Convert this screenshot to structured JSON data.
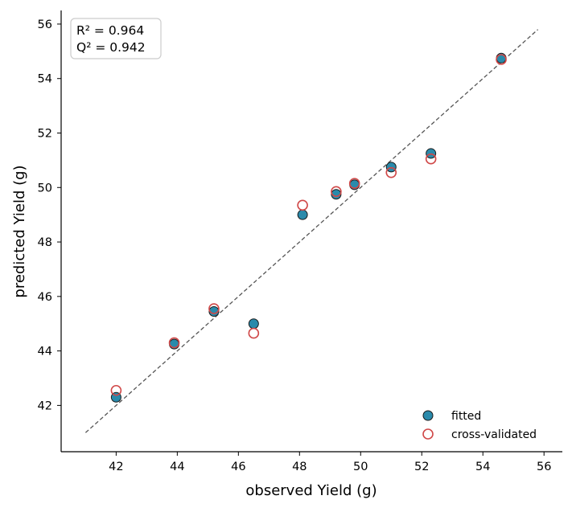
{
  "chart_data": {
    "type": "scatter",
    "xlabel": "observed Yield (g)",
    "ylabel": "predicted Yield (g)",
    "xlim": [
      40.2,
      56.6
    ],
    "ylim": [
      40.3,
      56.5
    ],
    "xticks": [
      42,
      44,
      46,
      48,
      50,
      52,
      54,
      56
    ],
    "yticks": [
      42,
      44,
      46,
      48,
      50,
      52,
      54,
      56
    ],
    "grid": false,
    "legend_position": "bottom-right",
    "annotation": [
      "R² = 0.964",
      "Q² = 0.942"
    ],
    "reference_line": {
      "style": "dashed",
      "x": [
        41.0,
        55.8
      ],
      "y": [
        41.0,
        55.8
      ],
      "color": "#555555"
    },
    "series": [
      {
        "name": "fitted",
        "marker": "filled-circle",
        "color": "#2a8aab",
        "edge_color": "#1a1a1a",
        "x": [
          42.0,
          43.9,
          45.2,
          46.5,
          48.1,
          49.2,
          49.8,
          51.0,
          52.3,
          54.6
        ],
        "y": [
          42.3,
          44.25,
          45.45,
          45.0,
          49.0,
          49.75,
          50.1,
          50.75,
          51.25,
          54.75
        ]
      },
      {
        "name": "cross-validated",
        "marker": "open-circle",
        "color": "#d04848",
        "x": [
          42.0,
          43.9,
          45.2,
          46.5,
          48.1,
          49.2,
          49.8,
          51.0,
          52.3,
          54.6
        ],
        "y": [
          42.55,
          44.3,
          45.55,
          44.65,
          49.35,
          49.85,
          50.15,
          50.55,
          51.05,
          54.7
        ]
      }
    ]
  }
}
